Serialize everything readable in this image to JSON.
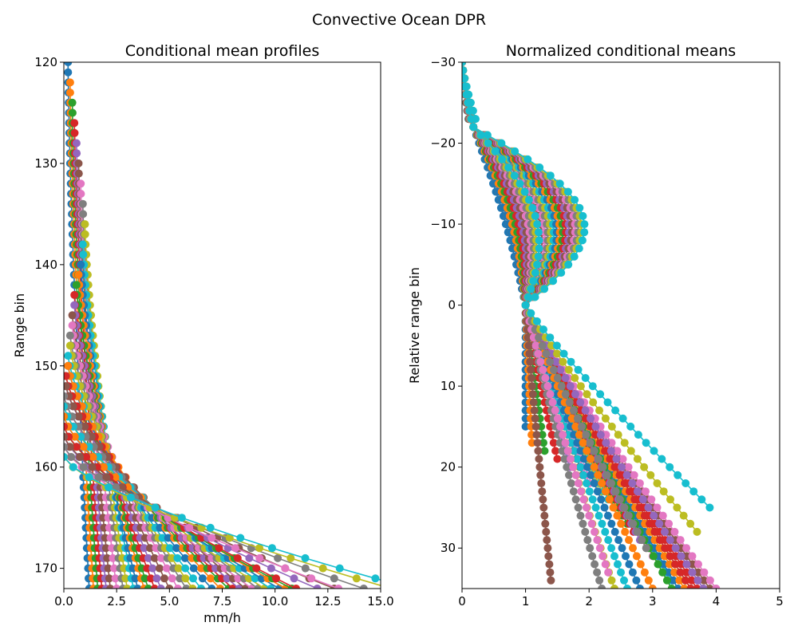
{
  "figure": {
    "suptitle": "Convective Ocean DPR"
  },
  "palette": [
    "#1f77b4",
    "#ff7f0e",
    "#2ca02c",
    "#d62728",
    "#9467bd",
    "#8c564b",
    "#e377c2",
    "#7f7f7f",
    "#bcbd22",
    "#17becf"
  ],
  "chart_data": [
    {
      "type": "line",
      "title": "Conditional mean profiles",
      "xlabel": "mm/h",
      "ylabel": "Range bin",
      "xlim": [
        0,
        15
      ],
      "ylim": [
        172,
        120
      ],
      "y_inverted": true,
      "xticks": [
        0.0,
        2.5,
        5.0,
        7.5,
        10.0,
        12.5,
        15.0
      ],
      "xtick_labels": [
        "0.0",
        "2.5",
        "5.0",
        "7.5",
        "10.0",
        "12.5",
        "15.0"
      ],
      "yticks": [
        120,
        130,
        140,
        150,
        160,
        170
      ],
      "ytick_labels": [
        "120",
        "130",
        "140",
        "150",
        "160",
        "170"
      ],
      "grid": false,
      "markers": "circle",
      "series_count": 40,
      "y_values": [
        120,
        121,
        122,
        123,
        124,
        125,
        126,
        127,
        128,
        129,
        130,
        131,
        132,
        133,
        134,
        135,
        136,
        137,
        138,
        139,
        140,
        141,
        142,
        143,
        144,
        145,
        146,
        147,
        148,
        149,
        150,
        151,
        152,
        153,
        154,
        155,
        156,
        157,
        158,
        159,
        160,
        161,
        162,
        163,
        164,
        165,
        166,
        167,
        168,
        169,
        170,
        171,
        172
      ],
      "series_start_bin": [
        120,
        122,
        124,
        126,
        128,
        130,
        132,
        134,
        136,
        138,
        140,
        141,
        142,
        143,
        144,
        145,
        146,
        147,
        148,
        149,
        150,
        150,
        151,
        151,
        152,
        152,
        153,
        153,
        154,
        154,
        155,
        155,
        156,
        156,
        157,
        157,
        158,
        158,
        159,
        159
      ],
      "series_surface_rate": [
        1.2,
        1.4,
        1.6,
        1.8,
        2.0,
        2.2,
        2.5,
        2.8,
        3.0,
        3.3,
        3.5,
        3.8,
        4.0,
        4.3,
        4.6,
        5.0,
        5.4,
        5.8,
        6.1,
        6.5,
        7.0,
        7.4,
        7.8,
        8.0,
        8.3,
        8.6,
        8.9,
        9.2,
        9.5,
        9.8,
        10.2,
        10.5,
        10.8,
        11.0,
        12.0,
        12.8,
        13.0,
        14.2,
        15.5,
        16.5
      ],
      "series_top_rate": [
        0.2,
        0.3,
        0.4,
        0.5,
        0.6,
        0.7,
        0.8,
        0.9,
        1.0,
        0.9,
        0.8,
        0.7,
        0.6,
        0.5,
        0.5,
        0.4,
        0.4,
        0.3,
        0.3,
        0.2,
        0.2,
        0.2,
        0.1,
        0.1,
        0.1,
        0.1,
        0.0,
        0.0,
        0.0,
        0.0,
        0.0,
        0.0,
        0.0,
        0.0,
        0.0,
        0.0,
        0.0,
        0.0,
        0.0,
        0.0
      ]
    },
    {
      "type": "line",
      "title": "Normalized conditional means",
      "xlabel": "",
      "ylabel": "Relative range bin",
      "xlim": [
        0,
        5
      ],
      "ylim": [
        35,
        -30
      ],
      "y_inverted": true,
      "xticks": [
        0,
        1,
        2,
        3,
        4,
        5
      ],
      "xtick_labels": [
        "0",
        "1",
        "2",
        "3",
        "4",
        "5"
      ],
      "yticks": [
        -30,
        -20,
        -10,
        0,
        10,
        20,
        30
      ],
      "ytick_labels": [
        "−30",
        "−20",
        "−10",
        "0",
        "10",
        "20",
        "30"
      ],
      "grid": false,
      "markers": "circle",
      "series_count": 40,
      "y_values": [
        -30,
        -29,
        -28,
        -27,
        -26,
        -25,
        -24,
        -23,
        -22,
        -21,
        -20,
        -19,
        -18,
        -17,
        -16,
        -15,
        -14,
        -13,
        -12,
        -11,
        -10,
        -9,
        -8,
        -7,
        -6,
        -5,
        -4,
        -3,
        -2,
        -1,
        0,
        1,
        2,
        3,
        4,
        5,
        6,
        7,
        8,
        9,
        10,
        11,
        12,
        13,
        14,
        15,
        16,
        17,
        18,
        19,
        20,
        21,
        22,
        23,
        24,
        25,
        26,
        27,
        28,
        29,
        30,
        31,
        32,
        33,
        34,
        35
      ],
      "normalization_point": {
        "x": 1,
        "y": 0
      },
      "series_upper_bulge": [
        0.1,
        0.15,
        0.2,
        0.22,
        0.25,
        0.28,
        0.3,
        0.32,
        0.35,
        0.38,
        0.4,
        0.45,
        0.5,
        0.55,
        0.6,
        0.65,
        0.7,
        0.75,
        0.8,
        0.85,
        0.9,
        0.95,
        1.0,
        1.05,
        1.1,
        1.15,
        1.2,
        1.25,
        1.3,
        1.35,
        0.15,
        0.2,
        0.25,
        0.3,
        0.35,
        0.4,
        0.45,
        0.5,
        0.55,
        0.6
      ],
      "series_lower_extent": [
        15,
        17,
        18,
        19,
        20,
        21,
        22,
        22,
        23,
        24,
        25,
        26,
        27,
        28,
        29,
        30,
        31,
        32,
        33,
        34,
        35,
        35,
        35,
        35,
        35,
        35,
        35,
        35,
        35,
        35,
        35,
        35,
        35,
        35,
        35,
        34,
        33,
        30,
        28,
        25
      ],
      "series_lower_max": [
        1.0,
        1.1,
        1.3,
        1.5,
        1.7,
        1.9,
        2.0,
        2.1,
        2.2,
        2.3,
        2.4,
        2.5,
        2.6,
        2.7,
        2.8,
        2.9,
        3.0,
        3.1,
        3.2,
        3.3,
        3.4,
        3.5,
        3.6,
        3.7,
        3.8,
        3.9,
        4.0,
        2.2,
        2.4,
        2.6,
        2.8,
        3.0,
        3.3,
        3.6,
        3.8,
        1.4,
        2.3,
        2.9,
        3.7,
        3.9
      ]
    }
  ]
}
